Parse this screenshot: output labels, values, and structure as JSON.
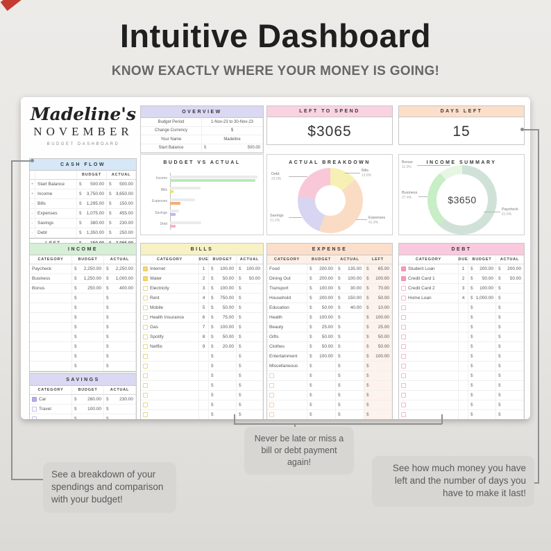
{
  "currency_symbol": "$",
  "page": {
    "title": "Intuitive Dashboard",
    "subtitle": "KNOW EXACTLY WHERE YOUR MONEY IS GOING!"
  },
  "branding": {
    "owner": "Madeline's",
    "month": "NOVEMBER",
    "tagline": "· BUDGET DASHBOARD ·"
  },
  "overview": {
    "title": "OVERVIEW",
    "rows": [
      {
        "label": "Budget Period",
        "value": "1-Nov-23   to   30-Nov-23"
      },
      {
        "label": "Change Currency",
        "value": "$"
      },
      {
        "label": "Your Name",
        "value": "Madeline"
      },
      {
        "label": "Start Balance",
        "currency": "$",
        "value": "500.00"
      }
    ]
  },
  "left_to_spend": {
    "title": "LEFT TO SPEND",
    "value": "$3065"
  },
  "days_left": {
    "title": "DAYS LEFT",
    "value": "15"
  },
  "cash_flow": {
    "title": "CASH FLOW",
    "columns": [
      "BUDGET",
      "ACTUAL"
    ],
    "rows": [
      {
        "sign": "•",
        "label": "Start Balance",
        "budget": "500.00",
        "actual": "500.00"
      },
      {
        "sign": "•",
        "label": "Income",
        "budget": "3,750.00",
        "actual": "3,650.00"
      },
      {
        "sign": "-",
        "label": "Bills",
        "budget": "1,295.00",
        "actual": "150.00"
      },
      {
        "sign": "-",
        "label": "Expenses",
        "budget": "1,075.00",
        "actual": "455.00"
      },
      {
        "sign": "-",
        "label": "Savings",
        "budget": "380.00",
        "actual": "230.00"
      },
      {
        "sign": "-",
        "label": "Debt",
        "budget": "1,350.00",
        "actual": "250.00"
      }
    ],
    "total_row": {
      "label": "LEFT",
      "budget": "150.00",
      "actual": "3,065.00"
    }
  },
  "income": {
    "title": "INCOME",
    "columns": [
      "CATEGORY",
      "BUDGET",
      "ACTUAL"
    ],
    "rows": [
      {
        "category": "Paycheck",
        "budget": "2,250.00",
        "actual": "2,250.00"
      },
      {
        "category": "Business",
        "budget": "1,250.00",
        "actual": "1,000.00"
      },
      {
        "category": "Bonus",
        "budget": "250.00",
        "actual": "400.00"
      }
    ],
    "empty_rows": 8,
    "total_row": {
      "label": "TOTAL",
      "budget": "3,750.00",
      "actual": "3,650.00"
    }
  },
  "bills": {
    "title": "BILLS",
    "columns": [
      "CATEGORY",
      "DUE",
      "BUDGET",
      "ACTUAL"
    ],
    "rows": [
      {
        "checked": true,
        "category": "Internet",
        "due": "1",
        "budget": "100.00",
        "actual": "100.00"
      },
      {
        "checked": true,
        "category": "Water",
        "due": "2",
        "budget": "50.00",
        "actual": "50.00"
      },
      {
        "checked": false,
        "category": "Electricity",
        "due": "3",
        "budget": "100.00",
        "actual": ""
      },
      {
        "checked": false,
        "category": "Rent",
        "due": "4",
        "budget": "750.00",
        "actual": ""
      },
      {
        "checked": false,
        "category": "Mobile",
        "due": "5",
        "budget": "50.00",
        "actual": ""
      },
      {
        "checked": false,
        "category": "Health Insurance",
        "due": "6",
        "budget": "75.00",
        "actual": ""
      },
      {
        "checked": false,
        "category": "Gas",
        "due": "7",
        "budget": "100.00",
        "actual": ""
      },
      {
        "checked": false,
        "category": "Spotify",
        "due": "8",
        "budget": "50.00",
        "actual": ""
      },
      {
        "checked": false,
        "category": "Netflix",
        "due": "9",
        "budget": "20.00",
        "actual": ""
      }
    ],
    "empty_rows": 10
  },
  "expense": {
    "title": "EXPENSE",
    "columns": [
      "CATEGORY",
      "BUDGET",
      "ACTUAL",
      "LEFT"
    ],
    "rows": [
      {
        "category": "Food",
        "budget": "200.00",
        "actual": "135.00",
        "left": "65.00"
      },
      {
        "category": "Dining Out",
        "budget": "200.00",
        "actual": "100.00",
        "left": "100.00"
      },
      {
        "category": "Transport",
        "budget": "100.00",
        "actual": "30.00",
        "left": "70.00"
      },
      {
        "category": "Household",
        "budget": "200.00",
        "actual": "150.00",
        "left": "50.00"
      },
      {
        "category": "Education",
        "budget": "50.00",
        "actual": "40.00",
        "left": "10.00"
      },
      {
        "category": "Health",
        "budget": "100.00",
        "actual": "",
        "left": "100.00"
      },
      {
        "category": "Beauty",
        "budget": "25.00",
        "actual": "",
        "left": "25.00"
      },
      {
        "category": "Gifts",
        "budget": "50.00",
        "actual": "",
        "left": "50.00"
      },
      {
        "category": "Clothes",
        "budget": "50.00",
        "actual": "",
        "left": "50.00"
      },
      {
        "category": "Entertainment",
        "budget": "100.00",
        "actual": "",
        "left": "100.00"
      },
      {
        "category": "Miscellaneous",
        "budget": "",
        "actual": "",
        "left": ""
      }
    ],
    "empty_rows": 8
  },
  "debt": {
    "title": "DEBT",
    "columns": [
      "CATEGORY",
      "DUE",
      "BUDGET",
      "ACTUAL"
    ],
    "rows": [
      {
        "checked": true,
        "category": "Student Loan",
        "due": "1",
        "budget": "200.00",
        "actual": "200.00"
      },
      {
        "checked": true,
        "category": "Credit Card 1",
        "due": "2",
        "budget": "50.00",
        "actual": "50.00"
      },
      {
        "checked": false,
        "category": "Credit Card 2",
        "due": "3",
        "budget": "100.00",
        "actual": ""
      },
      {
        "checked": false,
        "category": "Home Loan",
        "due": "4",
        "budget": "1,000.00",
        "actual": ""
      }
    ],
    "empty_rows": 15
  },
  "savings": {
    "title": "SAVINGS",
    "columns": [
      "CATEGORY",
      "BUDGET",
      "ACTUAL"
    ],
    "rows": [
      {
        "checked": true,
        "category": "Car",
        "budget": "280.00",
        "actual": "230.00"
      },
      {
        "checked": false,
        "category": "Travel",
        "budget": "100.00",
        "actual": ""
      }
    ],
    "empty_rows": 3
  },
  "chart_data": [
    {
      "type": "bar",
      "title": "BUDGET VS ACTUAL",
      "orientation": "horizontal",
      "categories": [
        "Income",
        "Bills",
        "Expenses",
        "Savings",
        "Debt"
      ],
      "series": [
        {
          "name": "Budget",
          "values": [
            3750,
            1295,
            1075,
            380,
            1350
          ],
          "color": "#ebebeb"
        },
        {
          "name": "Actual",
          "values": [
            3650,
            150,
            455,
            230,
            250
          ],
          "colors": [
            "#b7ecb7",
            "#ece463",
            "#f2ae74",
            "#b9b9f0",
            "#f6b1c0"
          ]
        }
      ],
      "xlim": [
        0,
        3750
      ],
      "grid": false,
      "legend": "none"
    },
    {
      "type": "donut",
      "title": "ACTUAL BREAKDOWN",
      "slices": [
        {
          "label": "Bills",
          "pct": 13.8,
          "pct_label": "13.8%",
          "color": "#f7f0b4"
        },
        {
          "label": "Expenses",
          "pct": 41.9,
          "pct_label": "41.9%",
          "color": "#fadcc4"
        },
        {
          "label": "Savings",
          "pct": 21.2,
          "pct_label": "21.2%",
          "color": "#d8d5f2"
        },
        {
          "label": "Debt",
          "pct": 23.0,
          "pct_label": "23.0%",
          "color": "#f8c8d8"
        }
      ]
    },
    {
      "type": "donut",
      "title": "INCOME SUMMARY",
      "center": "$3650",
      "slices": [
        {
          "label": "Paycheck",
          "pct": 61.6,
          "pct_label": "61.6%",
          "color": "#d0e2d8"
        },
        {
          "label": "Business",
          "pct": 27.4,
          "pct_label": "27.4%",
          "color": "#c7eec5"
        },
        {
          "label": "Bonus",
          "pct": 11.0,
          "pct_label": "11.0%",
          "color": "#e7f6e3"
        }
      ]
    }
  ],
  "callouts": [
    {
      "text": "See a breakdown of your spendings and comparison with your budget!"
    },
    {
      "text": "Never be late or miss a bill or debt payment again!"
    },
    {
      "text": "See how much money you have left and the number of days you have to make it last!"
    }
  ]
}
